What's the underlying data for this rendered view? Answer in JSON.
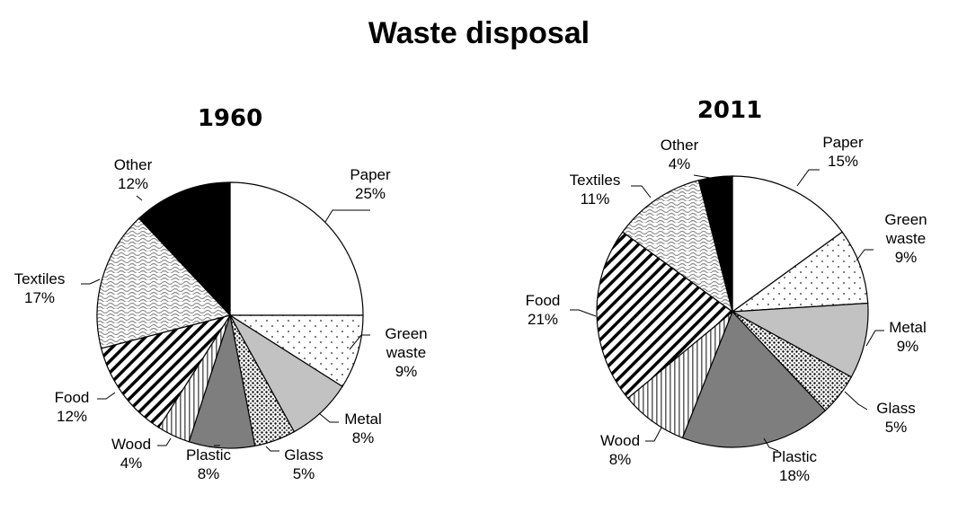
{
  "title": "Waste disposal",
  "chart_data": [
    {
      "type": "pie",
      "title": "1960",
      "categories": [
        "Paper",
        "Green waste",
        "Metal",
        "Glass",
        "Plastic",
        "Wood",
        "Food",
        "Textiles",
        "Other"
      ],
      "values": [
        25,
        9,
        8,
        5,
        8,
        4,
        12,
        17,
        12
      ],
      "labels": [
        "25%",
        "9%",
        "8%",
        "5%",
        "8%",
        "4%",
        "12%",
        "17%",
        "12%"
      ],
      "start": "12 o'clock",
      "direction": "clockwise"
    },
    {
      "type": "pie",
      "title": "2011",
      "categories": [
        "Paper",
        "Green waste",
        "Metal",
        "Glass",
        "Plastic",
        "Wood",
        "Food",
        "Textiles",
        "Other"
      ],
      "values": [
        15,
        9,
        9,
        5,
        18,
        8,
        21,
        11,
        4
      ],
      "labels": [
        "15%",
        "9%",
        "9%",
        "5%",
        "18%",
        "8%",
        "21%",
        "11%",
        "4%"
      ],
      "start": "12 o'clock",
      "direction": "clockwise"
    }
  ],
  "fills": {
    "Paper": "white",
    "Green waste": "sparse-dots",
    "Metal": "#c2c2c2",
    "Glass": "dense-dots",
    "Plastic": "#7e7e7e",
    "Wood": "vertical-stripes",
    "Food": "diagonal-stripes",
    "Textiles": "wavy-lines",
    "Other": "#000000"
  }
}
